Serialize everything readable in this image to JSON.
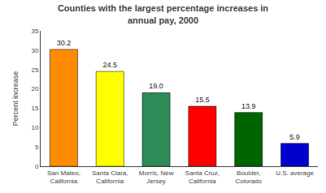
{
  "chart_data": {
    "type": "bar",
    "title": "Counties with the largest percentage increases in\nannual pay, 2000",
    "categories": [
      "San Mateo,\nCalifornia",
      "Santa Clara,\nCalifornia",
      "Morris, New\nJersey",
      "Santa Cruz,\nCalifornia",
      "Boulder,\nColorado",
      "U.S. average"
    ],
    "values": [
      30.2,
      24.5,
      19.0,
      15.5,
      13.9,
      5.9
    ],
    "value_labels": [
      "30.2",
      "24.5",
      "19.0",
      "15.5",
      "13.9",
      "5.9"
    ],
    "colors": [
      "#FF8C00",
      "#FFFF00",
      "#2E8B57",
      "#FF0000",
      "#006400",
      "#0000CD"
    ],
    "ylabel": "Percent increase",
    "ylim": [
      0,
      35
    ],
    "yticks": [
      0,
      5,
      10,
      15,
      20,
      25,
      30,
      35
    ],
    "data_labels": true,
    "grid": false
  }
}
